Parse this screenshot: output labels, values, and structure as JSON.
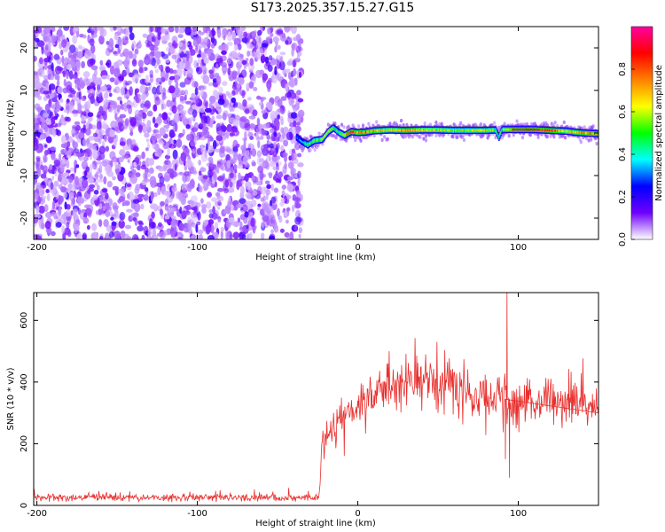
{
  "title": "S173.2025.357.15.27.G15",
  "chart_data": [
    {
      "type": "heatmap",
      "xlabel": "Height of straight line (km)",
      "ylabel": "Frequency (Hz)",
      "xlim": [
        -202,
        150
      ],
      "ylim": [
        -25,
        25
      ],
      "xticks": [
        "-200",
        "-100",
        "0",
        "100"
      ],
      "xtick_values": [
        -200,
        -100,
        0,
        100
      ],
      "yticks": [
        "-20",
        "-10",
        "0",
        "10",
        "20"
      ],
      "ytick_values": [
        -20,
        -10,
        0,
        10,
        20
      ],
      "colorbar": {
        "label": "Normalized spectral amplitude",
        "range": [
          0,
          1
        ],
        "ticks": [
          "0.0",
          "0.2",
          "0.4",
          "0.6",
          "0.8"
        ],
        "tick_values": [
          0.0,
          0.2,
          0.4,
          0.6,
          0.8
        ],
        "colors": [
          "#ffffff",
          "#6f00ff",
          "#0000ff",
          "#00ffff",
          "#00ff00",
          "#ffff00",
          "#ff8000",
          "#ff0000",
          "#ff00a0"
        ]
      },
      "noise_region": {
        "x": [
          -202,
          -35
        ],
        "y": [
          -25,
          25
        ],
        "amplitude": [
          0.05,
          0.2
        ]
      },
      "signal_ridge": [
        {
          "x": -38,
          "f": -1.0,
          "a": 0.3
        },
        {
          "x": -35,
          "f": -2.0,
          "a": 0.35
        },
        {
          "x": -31,
          "f": -2.8,
          "a": 0.5
        },
        {
          "x": -27,
          "f": -1.8,
          "a": 0.55
        },
        {
          "x": -22,
          "f": -1.5,
          "a": 0.55
        },
        {
          "x": -18,
          "f": 0.4,
          "a": 0.6
        },
        {
          "x": -15,
          "f": 1.2,
          "a": 0.55
        },
        {
          "x": -12,
          "f": 0.2,
          "a": 0.5
        },
        {
          "x": -8,
          "f": -0.6,
          "a": 0.6
        },
        {
          "x": -4,
          "f": 0.3,
          "a": 0.85
        },
        {
          "x": 0,
          "f": 0.1,
          "a": 0.7
        },
        {
          "x": 5,
          "f": 0.2,
          "a": 0.8
        },
        {
          "x": 10,
          "f": 0.5,
          "a": 0.7
        },
        {
          "x": 20,
          "f": 0.7,
          "a": 0.6
        },
        {
          "x": 30,
          "f": 0.6,
          "a": 0.75
        },
        {
          "x": 40,
          "f": 0.7,
          "a": 0.6
        },
        {
          "x": 50,
          "f": 0.7,
          "a": 0.6
        },
        {
          "x": 60,
          "f": 0.6,
          "a": 0.55
        },
        {
          "x": 70,
          "f": 0.6,
          "a": 0.55
        },
        {
          "x": 80,
          "f": 0.6,
          "a": 0.65
        },
        {
          "x": 86,
          "f": 0.7,
          "a": 0.5
        },
        {
          "x": 88,
          "f": -1.0,
          "a": 0.45
        },
        {
          "x": 90,
          "f": 0.8,
          "a": 0.5
        },
        {
          "x": 100,
          "f": 0.8,
          "a": 0.95
        },
        {
          "x": 110,
          "f": 0.8,
          "a": 0.95
        },
        {
          "x": 120,
          "f": 0.6,
          "a": 0.85
        },
        {
          "x": 130,
          "f": 0.4,
          "a": 0.6
        },
        {
          "x": 140,
          "f": 0.0,
          "a": 0.7
        },
        {
          "x": 150,
          "f": -0.2,
          "a": 0.75
        }
      ]
    },
    {
      "type": "line",
      "xlabel": "Height of straight line (km)",
      "ylabel": "SNR (10 * v/v)",
      "xlim": [
        -202,
        150
      ],
      "ylim": [
        0,
        690
      ],
      "xticks": [
        "-200",
        "-100",
        "0",
        "100"
      ],
      "xtick_values": [
        -200,
        -100,
        0,
        100
      ],
      "yticks": [
        "0",
        "200",
        "400",
        "600"
      ],
      "ytick_values": [
        0,
        200,
        400,
        600
      ],
      "color": "#e8302e",
      "x_start": -202,
      "x_step": 0.35,
      "segments": [
        {
          "x": -202,
          "mean": 25
        },
        {
          "x": -24,
          "mean": 25
        },
        {
          "x": -22,
          "mean": 230
        },
        {
          "x": -10,
          "mean": 280
        },
        {
          "x": 0,
          "mean": 330
        },
        {
          "x": 10,
          "mean": 370
        },
        {
          "x": 20,
          "mean": 400
        },
        {
          "x": 35,
          "mean": 415
        },
        {
          "x": 50,
          "mean": 410
        },
        {
          "x": 65,
          "mean": 380
        },
        {
          "x": 80,
          "mean": 350
        },
        {
          "x": 100,
          "mean": 340
        },
        {
          "x": 125,
          "mean": 335
        },
        {
          "x": 150,
          "mean": 330
        }
      ],
      "spikes": [
        {
          "x": 93,
          "value": 690
        },
        {
          "x": 94.5,
          "value": 90
        },
        {
          "x": 92,
          "value": 150
        }
      ]
    }
  ]
}
